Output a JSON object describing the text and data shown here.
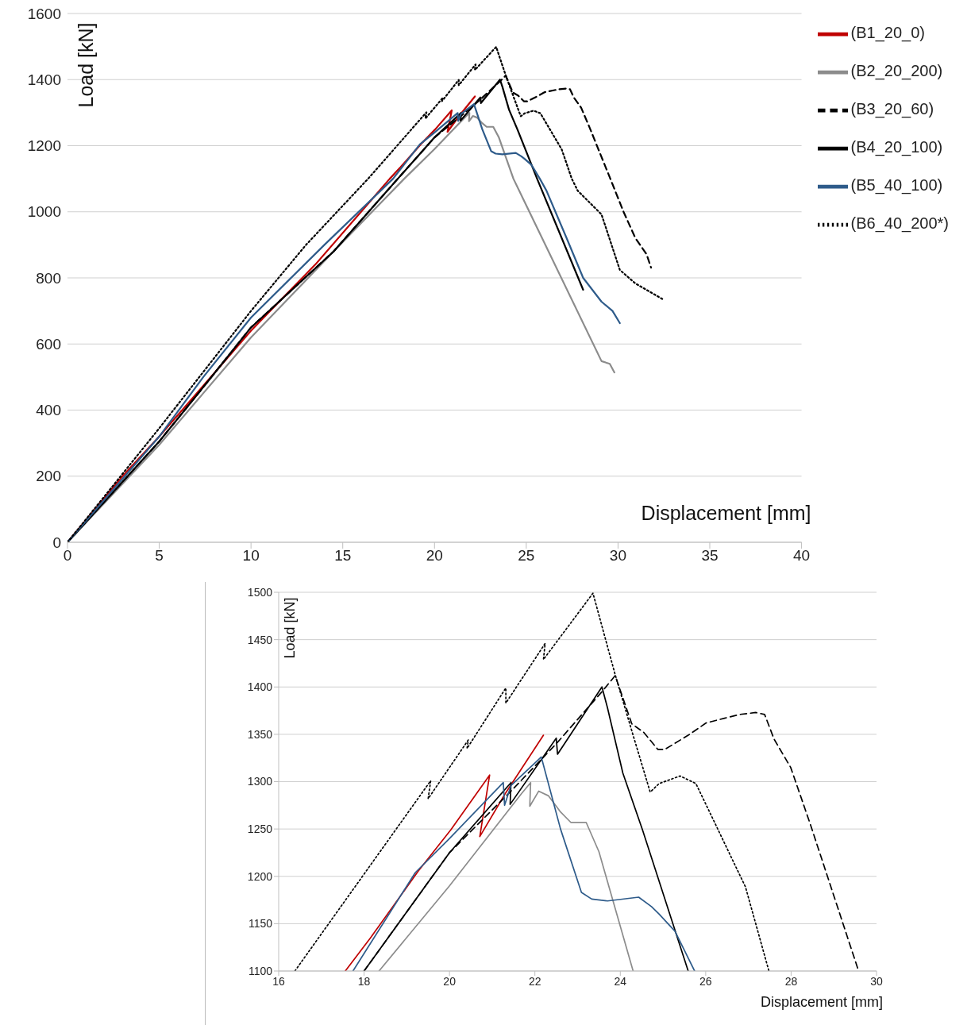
{
  "chart_data": [
    {
      "type": "line",
      "xlabel": "Displacement [mm]",
      "ylabel": "Load [kN]",
      "xlim": [
        0,
        40
      ],
      "xticks": [
        0,
        5,
        10,
        15,
        20,
        25,
        30,
        35,
        40
      ],
      "ylim": [
        0,
        1600
      ],
      "yticks": [
        0,
        200,
        400,
        600,
        800,
        1000,
        1200,
        1400,
        1600
      ],
      "grid": "y",
      "legend": "top right",
      "marker": "none",
      "series": [
        {
          "name": "(B1_20_0)",
          "color": "#c00000",
          "line_style": "solid",
          "x": [
            0,
            3,
            5,
            10,
            13.5,
            17.56,
            18.15,
            19.26,
            20.03,
            20.94,
            20.71,
            21.3,
            22.2
          ],
          "values": [
            0,
            200,
            320,
            640,
            840,
            1100,
            1135,
            1205,
            1249,
            1307,
            1242,
            1287,
            1349
          ]
        },
        {
          "name": "(B2_20_200)",
          "color": "#8c8c8c",
          "line_style": "solid",
          "x": [
            0,
            5,
            10,
            14.5,
            18.35,
            20,
            21.68,
            21.9,
            21.88,
            22.09,
            22.32,
            22.6,
            22.84,
            23.2,
            23.5,
            24.3,
            29.1,
            29.55,
            29.8
          ],
          "values": [
            0,
            295,
            620,
            880,
            1100,
            1190,
            1287,
            1299,
            1274,
            1290,
            1285,
            1268,
            1257,
            1257,
            1226,
            1100,
            548,
            540,
            514
          ]
        },
        {
          "name": "(B3_20_60)",
          "color": "#000000",
          "line_style": "dashed",
          "x": [
            0,
            5,
            7.7,
            10,
            14.5,
            18,
            20,
            21.44,
            22.5,
            23.57,
            23.88,
            24.27,
            24.55,
            24.88,
            25.04,
            25.59,
            26.01,
            26.44,
            26.8,
            27.17,
            27.38,
            27.6,
            27.99,
            28.45,
            29.58,
            30.3,
            30.95,
            31.55,
            31.8
          ],
          "values": [
            0,
            305,
            490,
            650,
            880,
            1100,
            1225,
            1290,
            1340,
            1395,
            1412,
            1361,
            1352,
            1334,
            1334,
            1349,
            1362,
            1367,
            1371,
            1373,
            1371,
            1345,
            1315,
            1255,
            1100,
            1000,
            920,
            872,
            831
          ]
        },
        {
          "name": "(B4_20_100)",
          "color": "#000000",
          "line_style": "solid",
          "x": [
            0,
            5,
            7.7,
            10,
            14.5,
            18,
            20,
            21.44,
            21.42,
            22.5,
            22.53,
            23.57,
            23.7,
            24.06,
            24.52,
            25.59,
            28.1
          ],
          "values": [
            0,
            305,
            490,
            650,
            880,
            1100,
            1225,
            1299,
            1276,
            1346,
            1329,
            1400,
            1378,
            1309,
            1249,
            1100,
            764
          ]
        },
        {
          "name": "(B5_40_100)",
          "color": "#2e5b8a",
          "line_style": "solid",
          "x": [
            0,
            5,
            7.4,
            10,
            14,
            17.74,
            19.2,
            20,
            21.26,
            21.29,
            21.44,
            22.15,
            22.6,
            23.09,
            23.33,
            23.7,
            24.43,
            24.73,
            24.91,
            25.28,
            25.74,
            26.1,
            27.2,
            28.1,
            29.1,
            29.7,
            30.1
          ],
          "values": [
            0,
            320,
            500,
            680,
            900,
            1100,
            1204,
            1240,
            1299,
            1275,
            1296,
            1326,
            1250,
            1183,
            1176,
            1174,
            1178,
            1168,
            1160,
            1142,
            1100,
            1064,
            920,
            800,
            728,
            700,
            663
          ]
        },
        {
          "name": "(B6_40_200*)",
          "color": "#000000",
          "line_style": "dotted",
          "x": [
            0,
            5,
            10,
            13,
            16.38,
            19.56,
            19.5,
            20.44,
            20.41,
            21.32,
            21.32,
            22.24,
            22.2,
            23.36,
            23.88,
            24.3,
            24.7,
            24.91,
            25.4,
            25.77,
            26.26,
            26.93,
            27.48,
            27.8,
            29.1,
            30.1,
            30.95,
            32.45
          ],
          "values": [
            0,
            345,
            700,
            900,
            1100,
            1301,
            1282,
            1344,
            1335,
            1399,
            1383,
            1446,
            1429,
            1499,
            1413,
            1349,
            1289,
            1298,
            1306,
            1298,
            1252,
            1189,
            1100,
            1064,
            992,
            824,
            783,
            735
          ]
        }
      ]
    },
    {
      "type": "line",
      "xlabel": "Displacement [mm]",
      "ylabel": "Load [kN]",
      "xlim": [
        16,
        30
      ],
      "xticks": [
        16,
        18,
        20,
        22,
        24,
        26,
        28,
        30
      ],
      "ylim": [
        1100,
        1500
      ],
      "yticks": [
        1100,
        1150,
        1200,
        1250,
        1300,
        1350,
        1400,
        1450,
        1500
      ],
      "grid": "y",
      "marker": "none",
      "series": [
        {
          "color": "#c00000",
          "line_style": "solid",
          "x": [
            17.56,
            18.15,
            19.26,
            20.03,
            20.94,
            20.71,
            21.3,
            22.2
          ],
          "values": [
            1100,
            1135,
            1205,
            1249,
            1307,
            1242,
            1287,
            1349
          ]
        },
        {
          "color": "#8c8c8c",
          "line_style": "solid",
          "x": [
            18.35,
            20,
            21.68,
            21.9,
            21.88,
            22.09,
            22.32,
            22.6,
            22.84,
            23.2,
            23.5,
            24.3
          ],
          "values": [
            1100,
            1190,
            1287,
            1299,
            1274,
            1290,
            1285,
            1268,
            1257,
            1257,
            1226,
            1100
          ]
        },
        {
          "color": "#000000",
          "line_style": "dashed",
          "x": [
            18,
            20,
            21.44,
            22.5,
            23.57,
            23.88,
            24.27,
            24.55,
            24.88,
            25.04,
            25.59,
            26.01,
            26.44,
            26.8,
            27.17,
            27.38,
            27.6,
            27.99,
            28.45,
            29.58
          ],
          "values": [
            1100,
            1225,
            1290,
            1340,
            1395,
            1412,
            1361,
            1352,
            1334,
            1334,
            1349,
            1362,
            1367,
            1371,
            1373,
            1371,
            1345,
            1315,
            1255,
            1100
          ]
        },
        {
          "color": "#000000",
          "line_style": "solid",
          "x": [
            18,
            20,
            21.44,
            21.42,
            22.5,
            22.53,
            23.57,
            23.7,
            24.06,
            24.52,
            25.59
          ],
          "values": [
            1100,
            1225,
            1299,
            1276,
            1346,
            1329,
            1400,
            1378,
            1309,
            1249,
            1100
          ]
        },
        {
          "color": "#2e5b8a",
          "line_style": "solid",
          "x": [
            17.74,
            19.2,
            20,
            21.26,
            21.29,
            21.44,
            22.15,
            22.6,
            23.09,
            23.33,
            23.7,
            24.43,
            24.73,
            24.91,
            25.28,
            25.74
          ],
          "values": [
            1100,
            1204,
            1240,
            1299,
            1275,
            1296,
            1326,
            1250,
            1183,
            1176,
            1174,
            1178,
            1168,
            1160,
            1142,
            1100
          ]
        },
        {
          "color": "#000000",
          "line_style": "dotted",
          "x": [
            16.38,
            19.56,
            19.5,
            20.44,
            20.41,
            21.32,
            21.32,
            22.24,
            22.2,
            23.36,
            23.88,
            24.3,
            24.7,
            24.91,
            25.4,
            25.77,
            26.26,
            26.93,
            27.48
          ],
          "values": [
            1100,
            1301,
            1282,
            1344,
            1335,
            1399,
            1383,
            1446,
            1429,
            1499,
            1413,
            1349,
            1289,
            1298,
            1306,
            1298,
            1252,
            1189,
            1100
          ]
        }
      ]
    }
  ]
}
